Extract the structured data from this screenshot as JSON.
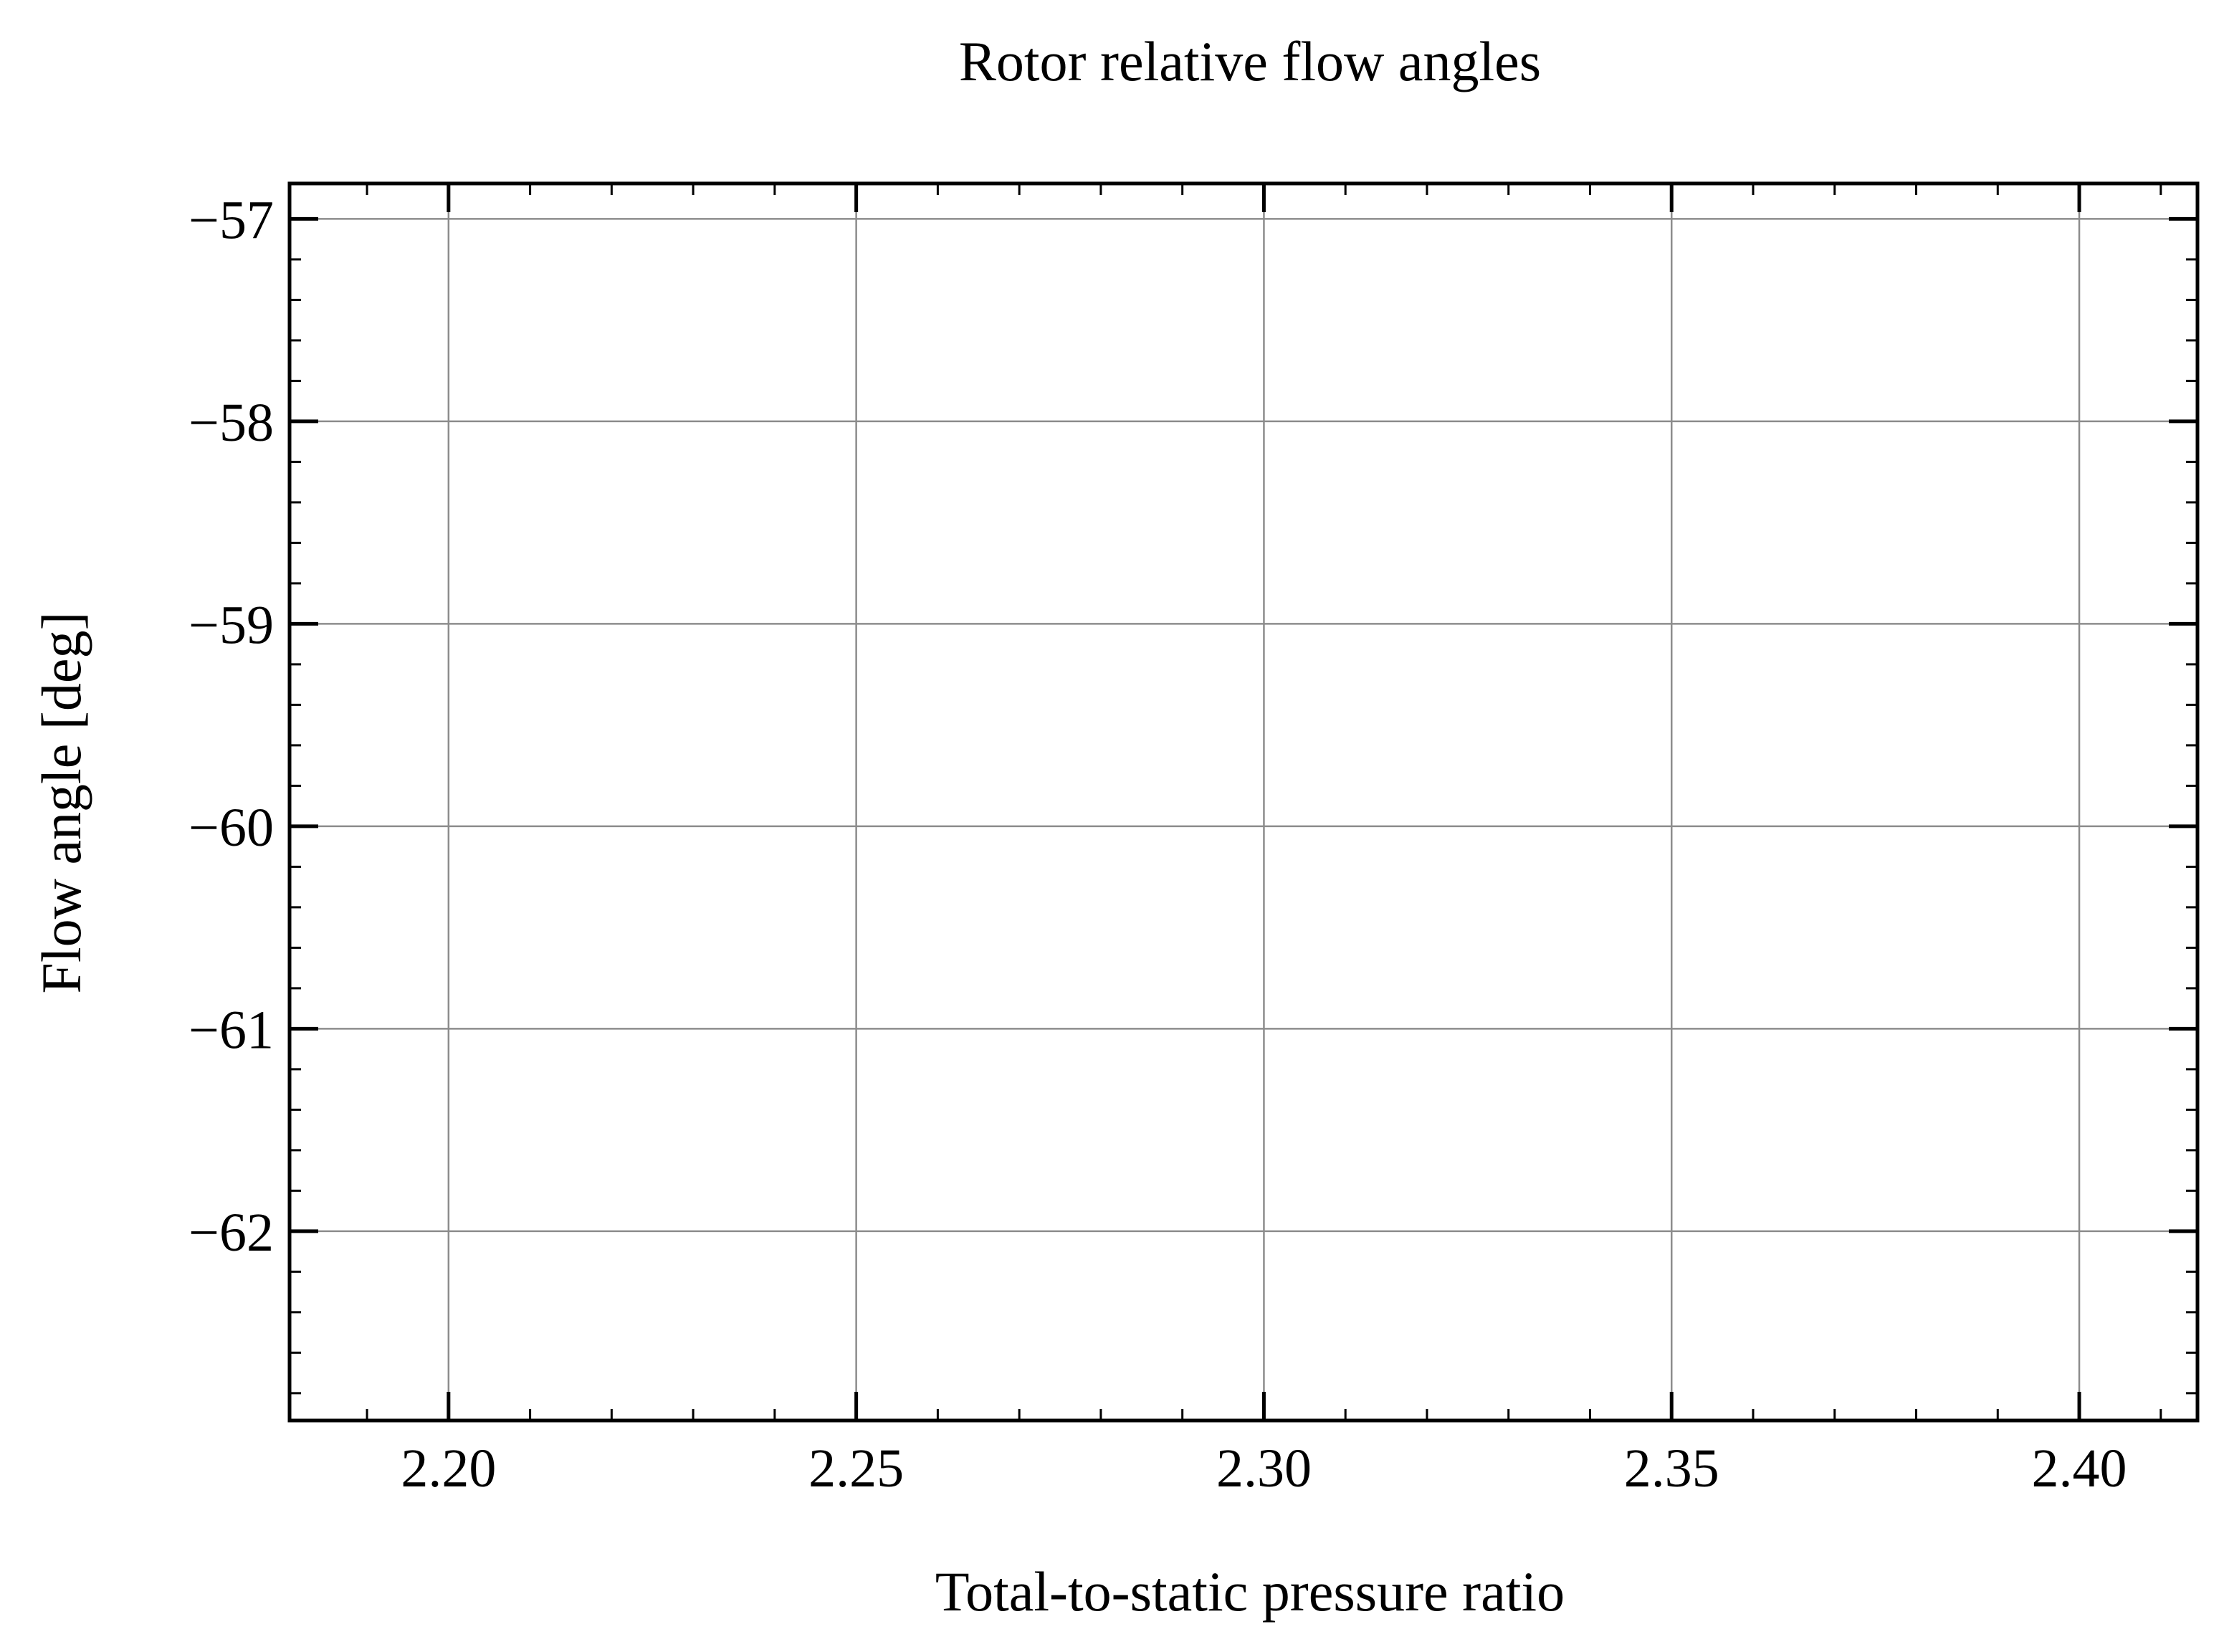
{
  "chart_data": {
    "type": "line",
    "title": "Rotor relative flow angles",
    "xlabel": "Total-to-static pressure ratio",
    "ylabel": "Flow angle [deg]",
    "xlim": [
      2.1805,
      2.4145
    ],
    "ylim": [
      -62.935,
      -56.825
    ],
    "x_ticks": [
      2.2,
      2.25,
      2.3,
      2.35,
      2.4
    ],
    "x_tick_labels": [
      "2.20",
      "2.25",
      "2.30",
      "2.35",
      "2.40"
    ],
    "x_minor_step": 0.01,
    "y_ticks": [
      -57,
      -58,
      -59,
      -60,
      -61,
      -62
    ],
    "y_tick_labels": [
      "−57",
      "−58",
      "−59",
      "−60",
      "−61",
      "−62"
    ],
    "y_minor_step": 0.2,
    "grid": true,
    "legend": "none",
    "series": [],
    "colors": {
      "axes": "#000000",
      "grid": "#8c8c8c",
      "background": "#ffffff"
    }
  }
}
